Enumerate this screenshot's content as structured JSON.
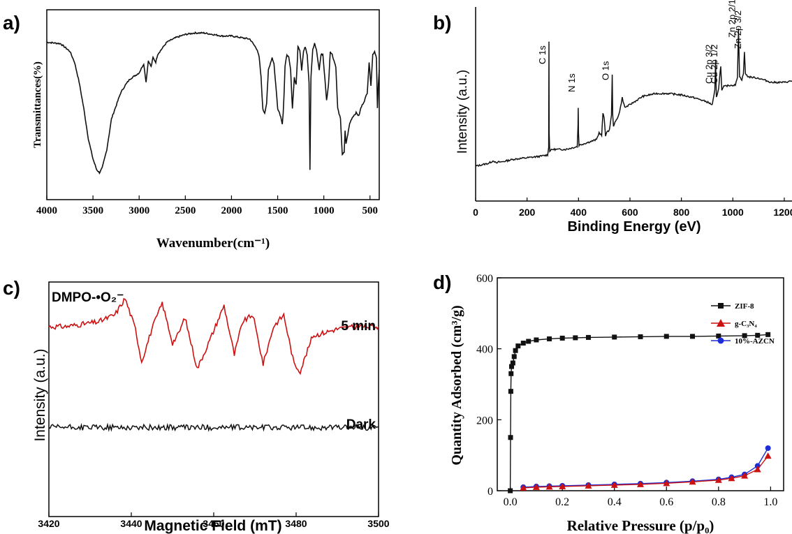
{
  "panels": {
    "a": {
      "letter": "a)"
    },
    "b": {
      "letter": "b)"
    },
    "c": {
      "letter": "c)"
    },
    "d": {
      "letter": "d)"
    }
  },
  "colors": {
    "axis": "#000000",
    "line": "#111111",
    "red": "#cc1111",
    "blue": "#1c2fd6",
    "black": "#111111"
  },
  "chart_data": [
    {
      "id": "a",
      "type": "line",
      "xlabel": "Wavenumber(cm⁻¹)",
      "ylabel": "Transmittances(%)",
      "xlim": [
        4000,
        400
      ],
      "xticks": [
        "4000",
        "3500",
        "3000",
        "2500",
        "2000",
        "1500",
        "1000",
        "500"
      ],
      "xtick_values": [
        4000,
        3500,
        3000,
        2500,
        2000,
        1500,
        1000,
        500
      ],
      "ylim": [
        0,
        100
      ],
      "grid": false,
      "series": [
        {
          "x": [
            4000,
            3850,
            3750,
            3700,
            3650,
            3600,
            3550,
            3500,
            3460,
            3430,
            3400,
            3350,
            3300,
            3200,
            3150,
            3100,
            3000,
            2950,
            2925,
            2900,
            2870,
            2850,
            2820,
            2800,
            2700,
            2600,
            2500,
            2400,
            2300,
            2200,
            2100,
            2000,
            1900,
            1800,
            1720,
            1700,
            1680,
            1660,
            1640,
            1620,
            1600,
            1560,
            1540,
            1520,
            1500,
            1480,
            1460,
            1450,
            1440,
            1430,
            1420,
            1400,
            1380,
            1360,
            1340,
            1320,
            1300,
            1280,
            1260,
            1240,
            1220,
            1200,
            1180,
            1160,
            1150,
            1140,
            1120,
            1100,
            1080,
            1060,
            1050,
            1030,
            1010,
            990,
            970,
            950,
            930,
            910,
            890,
            870,
            850,
            820,
            800,
            780,
            770,
            760,
            740,
            720,
            700,
            680,
            650,
            620,
            600,
            560,
            530,
            510,
            490,
            470,
            450,
            430,
            420,
            410,
            400
          ],
          "y": [
            88,
            87,
            82,
            75,
            62,
            45,
            25,
            12,
            5,
            3,
            6,
            18,
            38,
            55,
            60,
            64,
            68,
            74,
            62,
            76,
            72,
            78,
            75,
            80,
            88,
            91,
            93,
            94,
            94,
            93,
            92,
            92,
            91,
            90,
            83,
            78,
            65,
            44,
            42,
            48,
            70,
            78,
            74,
            60,
            45,
            42,
            38,
            35,
            42,
            55,
            72,
            80,
            78,
            70,
            45,
            65,
            60,
            85,
            83,
            70,
            82,
            85,
            80,
            62,
            5,
            65,
            83,
            87,
            83,
            74,
            70,
            80,
            80,
            65,
            50,
            60,
            82,
            80,
            76,
            72,
            45,
            38,
            15,
            16,
            30,
            22,
            28,
            35,
            38,
            40,
            42,
            40,
            45,
            50,
            55,
            75,
            60,
            80,
            82,
            78,
            45,
            60,
            70
          ]
        }
      ]
    },
    {
      "id": "b",
      "type": "line",
      "xlabel": "Binding Energy (eV)",
      "ylabel": "Intensity (a.u.)",
      "xlim": [
        0,
        1230
      ],
      "xticks": [
        "0",
        "200",
        "400",
        "600",
        "800",
        "1000",
        "1200"
      ],
      "xtick_values": [
        0,
        200,
        400,
        600,
        800,
        1000,
        1200
      ],
      "ylim": [
        0,
        100
      ],
      "grid": false,
      "annotations": [
        {
          "text": "C 1s",
          "x": 285
        },
        {
          "text": "N 1s",
          "x": 399
        },
        {
          "text": "O 1s",
          "x": 531
        },
        {
          "text": "Cu 2p 3/2",
          "x": 933
        },
        {
          "text": "Cu 2p 1/2",
          "x": 953
        },
        {
          "text": "Zn 2p 2/1",
          "x": 1022
        },
        {
          "text": "Zn 2p 3/2",
          "x": 1045
        }
      ],
      "series": [
        {
          "x": [
            0,
            50,
            70,
            80,
            90,
            100,
            150,
            200,
            250,
            280,
            284,
            285,
            286,
            288,
            300,
            350,
            395,
            398,
            399,
            400,
            402,
            420,
            470,
            480,
            490,
            495,
            500,
            505,
            510,
            520,
            528,
            531,
            533,
            536,
            550,
            560,
            570,
            580,
            600,
            650,
            700,
            750,
            800,
            850,
            900,
            920,
            930,
            933,
            936,
            945,
            953,
            957,
            965,
            990,
            1010,
            1018,
            1022,
            1026,
            1035,
            1041,
            1045,
            1049,
            1060,
            1100,
            1150,
            1200,
            1230
          ],
          "y": [
            6,
            8,
            10,
            8,
            9,
            9,
            11,
            12,
            13,
            14,
            20,
            95,
            30,
            17,
            18,
            18,
            20,
            35,
            48,
            30,
            21,
            22,
            25,
            30,
            28,
            44,
            40,
            28,
            30,
            32,
            42,
            72,
            42,
            35,
            40,
            45,
            55,
            48,
            50,
            56,
            58,
            58,
            57,
            55,
            52,
            50,
            60,
            82,
            55,
            62,
            78,
            60,
            63,
            64,
            64,
            70,
            105,
            70,
            68,
            72,
            88,
            72,
            70,
            69,
            66,
            66,
            67
          ]
        }
      ]
    },
    {
      "id": "c",
      "type": "line",
      "xlabel": "Magnetic Field (mT)",
      "ylabel": "Intensity (a.u.)",
      "title": "DMPO-•O₂⁻",
      "xlim": [
        3420,
        3500
      ],
      "xticks": [
        "3420",
        "3440",
        "3460",
        "3480",
        "3500"
      ],
      "xtick_values": [
        3420,
        3440,
        3460,
        3480,
        3500
      ],
      "ylim": [
        0,
        100
      ],
      "grid": false,
      "series": [
        {
          "name": "5 min",
          "x": [
            3420,
            3424,
            3428,
            3432,
            3436,
            3438.5,
            3441,
            3442.5,
            3445,
            3447.5,
            3450,
            3451.5,
            3453,
            3456,
            3459,
            3462.5,
            3465,
            3467,
            3469.5,
            3472,
            3474.5,
            3477,
            3479.5,
            3481,
            3484,
            3490,
            3495,
            3500
          ],
          "y": [
            81,
            81,
            82,
            83,
            86,
            93,
            80,
            66,
            80,
            91,
            74,
            78,
            85,
            63,
            75,
            90,
            69,
            83,
            86,
            65,
            81,
            86,
            65,
            62,
            77,
            80,
            81,
            81
          ]
        },
        {
          "name": "Dark",
          "x": [
            3420,
            3430,
            3440,
            3450,
            3460,
            3470,
            3480,
            3490,
            3500
          ],
          "y": [
            38,
            38,
            38,
            38,
            38,
            38,
            38,
            38,
            38
          ]
        }
      ]
    },
    {
      "id": "d",
      "type": "line",
      "xlabel": "Relative Pressure (p/p₀)",
      "ylabel": "Quantity Adsorbed (cm³/g)",
      "xlim": [
        -0.05,
        1.05
      ],
      "ylim": [
        0,
        600
      ],
      "xticks": [
        "0.0",
        "0.2",
        "0.4",
        "0.6",
        "0.8",
        "1.0"
      ],
      "xtick_values": [
        0,
        0.2,
        0.4,
        0.6,
        0.8,
        1.0
      ],
      "yticks": [
        "0",
        "200",
        "400",
        "600"
      ],
      "ytick_values": [
        0,
        200,
        400,
        600
      ],
      "legend": "top-right",
      "grid": false,
      "series": [
        {
          "name": "ZIF-8",
          "marker": "square",
          "x": [
            0.0,
            0.001,
            0.002,
            0.003,
            0.005,
            0.01,
            0.015,
            0.02,
            0.03,
            0.05,
            0.07,
            0.1,
            0.15,
            0.2,
            0.25,
            0.3,
            0.4,
            0.5,
            0.6,
            0.7,
            0.8,
            0.9,
            0.95,
            0.99
          ],
          "y": [
            0,
            150,
            280,
            330,
            350,
            360,
            378,
            395,
            408,
            416,
            421,
            425,
            428,
            430,
            431,
            432,
            433,
            434,
            435,
            435,
            436,
            437,
            438,
            440
          ]
        },
        {
          "name": "g-C₃N₄",
          "marker": "triangle",
          "x": [
            0.05,
            0.1,
            0.15,
            0.2,
            0.3,
            0.4,
            0.5,
            0.6,
            0.7,
            0.8,
            0.85,
            0.9,
            0.95,
            0.99
          ],
          "y": [
            8,
            10,
            11,
            12,
            14,
            16,
            18,
            21,
            25,
            30,
            35,
            42,
            60,
            98
          ]
        },
        {
          "name": "10%-AZCN",
          "marker": "circle",
          "x": [
            0.05,
            0.1,
            0.15,
            0.2,
            0.3,
            0.4,
            0.5,
            0.6,
            0.7,
            0.8,
            0.85,
            0.9,
            0.95,
            0.99
          ],
          "y": [
            10,
            12,
            13,
            14,
            16,
            18,
            20,
            23,
            27,
            32,
            38,
            46,
            70,
            120
          ]
        }
      ]
    }
  ]
}
